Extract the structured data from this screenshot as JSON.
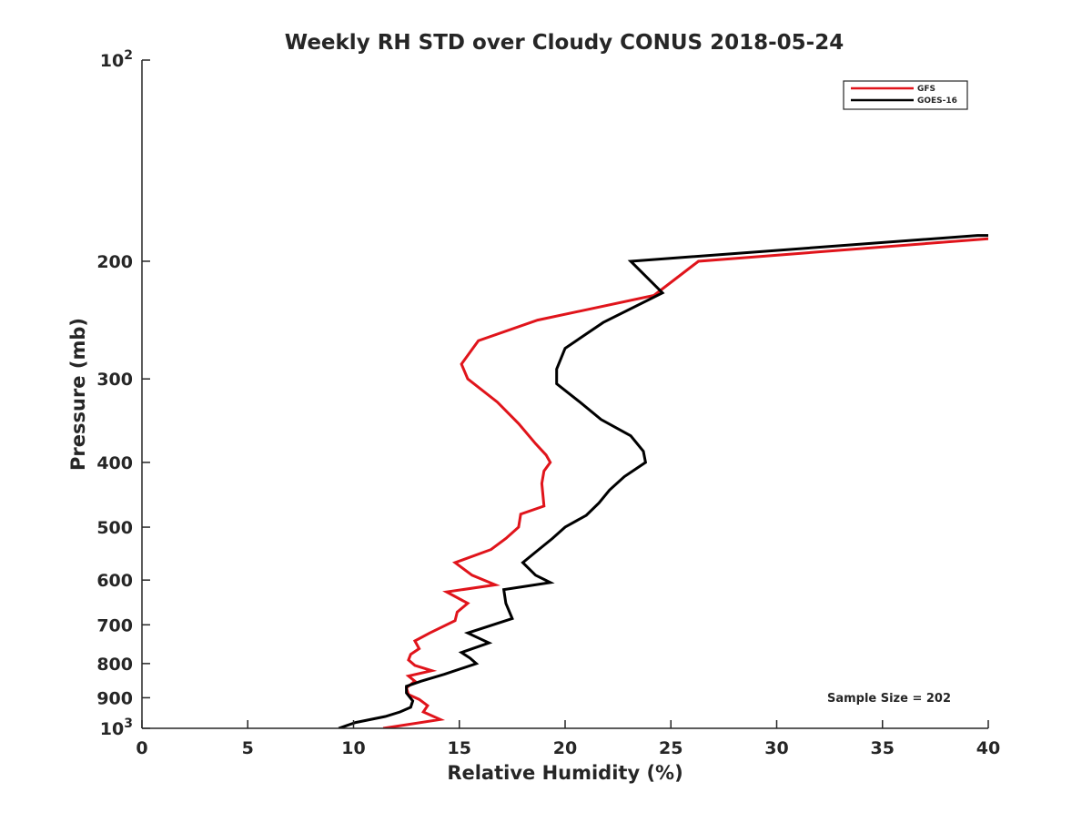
{
  "chart_data": {
    "type": "line",
    "title": "Weekly RH STD over Cloudy CONUS 2018-05-24",
    "xlabel": "Relative Humidity (%)",
    "ylabel": "Pressure (mb)",
    "xlim": [
      0,
      40
    ],
    "ylim": [
      100,
      1000
    ],
    "y_scale": "log",
    "y_reversed": true,
    "grid": false,
    "legend_position": "top-right",
    "x_ticks": [
      0,
      5,
      10,
      15,
      20,
      25,
      30,
      35,
      40
    ],
    "y_ticks": [
      {
        "value": 100,
        "label": "10",
        "sup": "2"
      },
      {
        "value": 200,
        "label": "200",
        "sup": ""
      },
      {
        "value": 300,
        "label": "300",
        "sup": ""
      },
      {
        "value": 400,
        "label": "400",
        "sup": ""
      },
      {
        "value": 500,
        "label": "500",
        "sup": ""
      },
      {
        "value": 600,
        "label": "600",
        "sup": ""
      },
      {
        "value": 700,
        "label": "700",
        "sup": ""
      },
      {
        "value": 800,
        "label": "800",
        "sup": ""
      },
      {
        "value": 900,
        "label": "900",
        "sup": ""
      },
      {
        "value": 1000,
        "label": "10",
        "sup": "3"
      }
    ],
    "annotation": "Sample Size = 202",
    "series": [
      {
        "name": "GFS",
        "color": "#e0141b",
        "points": [
          [
            41,
            184
          ],
          [
            26.3,
            200
          ],
          [
            24.2,
            225
          ],
          [
            18.7,
            245
          ],
          [
            15.9,
            263
          ],
          [
            15.1,
            285
          ],
          [
            15.4,
            300
          ],
          [
            16.8,
            325
          ],
          [
            17.8,
            350
          ],
          [
            18.6,
            375
          ],
          [
            19.1,
            390
          ],
          [
            19.3,
            400
          ],
          [
            19.0,
            412
          ],
          [
            18.9,
            430
          ],
          [
            19.0,
            465
          ],
          [
            17.9,
            478
          ],
          [
            17.8,
            500
          ],
          [
            17.2,
            520
          ],
          [
            16.5,
            540
          ],
          [
            14.8,
            565
          ],
          [
            15.6,
            590
          ],
          [
            16.7,
            610
          ],
          [
            14.4,
            625
          ],
          [
            15.4,
            650
          ],
          [
            14.9,
            670
          ],
          [
            14.8,
            690
          ],
          [
            13.6,
            720
          ],
          [
            12.9,
            740
          ],
          [
            13.1,
            760
          ],
          [
            12.7,
            775
          ],
          [
            12.6,
            790
          ],
          [
            12.9,
            805
          ],
          [
            13.7,
            820
          ],
          [
            12.6,
            835
          ],
          [
            12.9,
            850
          ],
          [
            12.5,
            870
          ],
          [
            12.6,
            890
          ],
          [
            13.1,
            905
          ],
          [
            13.5,
            925
          ],
          [
            13.3,
            945
          ],
          [
            14.1,
            970
          ],
          [
            11.4,
            1000
          ]
        ]
      },
      {
        "name": "GOES-16",
        "color": "#000000",
        "points": [
          [
            40,
            183
          ],
          [
            39.5,
            183
          ],
          [
            23.1,
            200
          ],
          [
            24.6,
            223
          ],
          [
            21.8,
            247
          ],
          [
            20.0,
            270
          ],
          [
            19.6,
            290
          ],
          [
            19.6,
            305
          ],
          [
            20.7,
            325
          ],
          [
            21.7,
            345
          ],
          [
            23.1,
            365
          ],
          [
            23.7,
            385
          ],
          [
            23.8,
            400
          ],
          [
            22.8,
            420
          ],
          [
            22.1,
            440
          ],
          [
            21.6,
            460
          ],
          [
            21.0,
            480
          ],
          [
            20.0,
            500
          ],
          [
            19.4,
            520
          ],
          [
            18.6,
            545
          ],
          [
            18.0,
            565
          ],
          [
            18.6,
            590
          ],
          [
            19.3,
            605
          ],
          [
            17.1,
            620
          ],
          [
            17.2,
            650
          ],
          [
            17.5,
            685
          ],
          [
            15.4,
            720
          ],
          [
            16.4,
            745
          ],
          [
            15.1,
            770
          ],
          [
            15.5,
            785
          ],
          [
            15.8,
            800
          ],
          [
            14.3,
            830
          ],
          [
            13.2,
            850
          ],
          [
            12.5,
            865
          ],
          [
            12.5,
            885
          ],
          [
            12.8,
            910
          ],
          [
            12.7,
            930
          ],
          [
            12.2,
            945
          ],
          [
            11.5,
            960
          ],
          [
            10.1,
            980
          ],
          [
            9.3,
            1000
          ]
        ]
      }
    ]
  }
}
